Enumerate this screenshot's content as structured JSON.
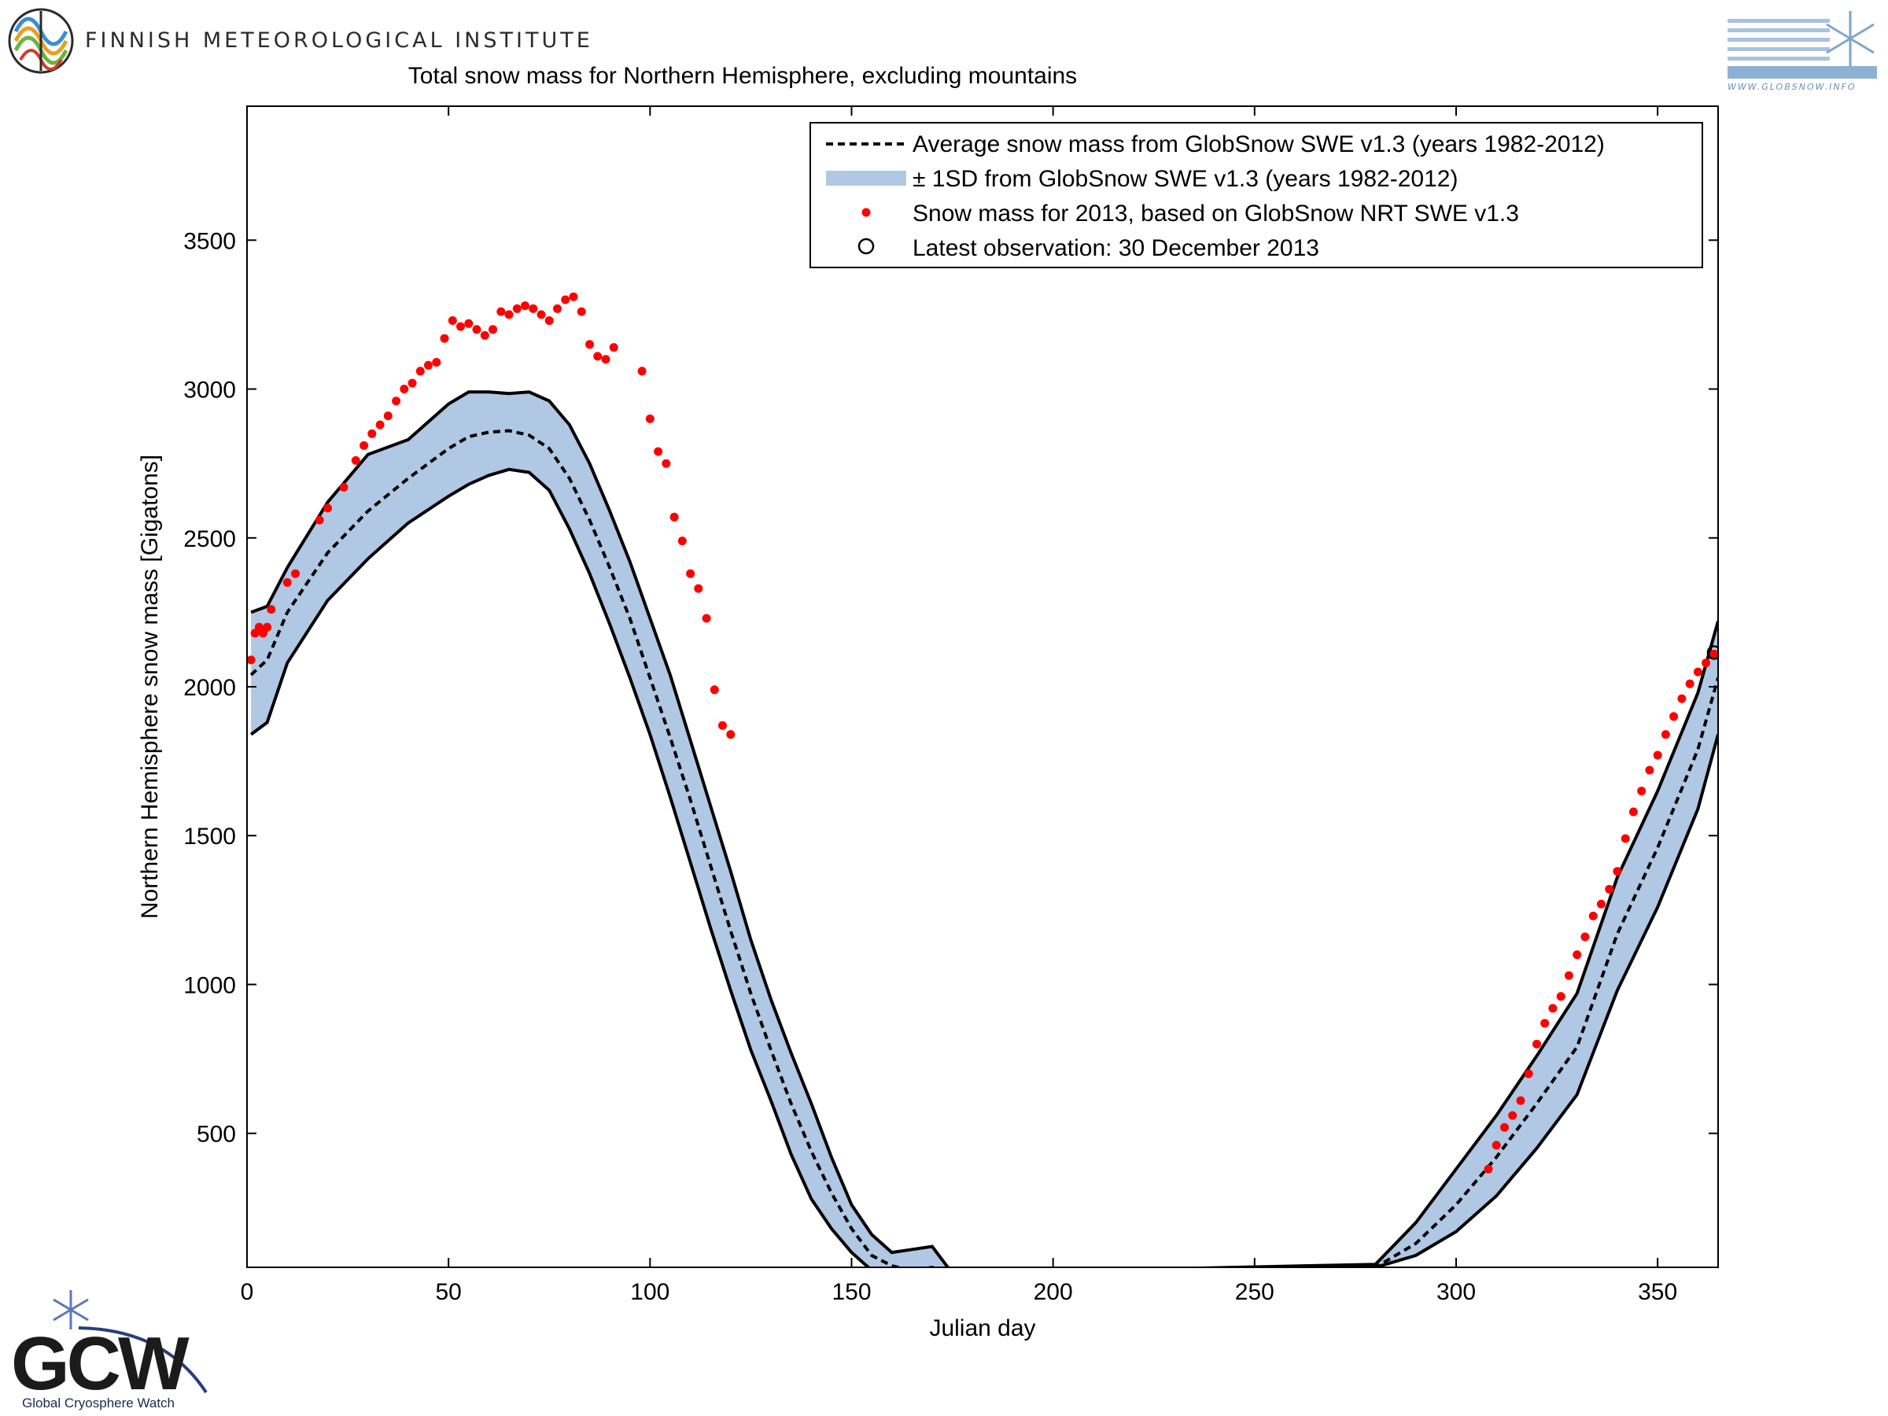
{
  "header": {
    "organization": "FINNISH METEOROLOGICAL INSTITUTE",
    "fmi_logo_icon": "fmi-logo-icon",
    "globsnow_logo_icon": "globsnow-logo-icon",
    "globsnow_url": "WWW.GLOBSNOW.INFO"
  },
  "footer": {
    "gcw_logo_icon": "gcw-logo-icon",
    "gcw_subtitle": "Global Cryosphere Watch"
  },
  "colors": {
    "band": "#b0c8e3",
    "band_border": "#000000",
    "mean_line": "#000000",
    "obs_points": "#ff0000",
    "latest_marker": "#000000"
  },
  "chart_data": {
    "type": "line",
    "title": "Total snow mass for Northern Hemisphere, excluding mountains",
    "xlabel": "Julian day",
    "ylabel": "Northern Hemisphere snow mass [Gigatons]",
    "xlim": [
      0,
      365
    ],
    "ylim": [
      50,
      3950
    ],
    "xticks": [
      0,
      50,
      100,
      150,
      200,
      250,
      300,
      350
    ],
    "yticks": [
      500,
      1000,
      1500,
      2000,
      2500,
      3000,
      3500
    ],
    "grid": false,
    "legend_position": "top-right",
    "legend": [
      "Average snow mass from GlobSnow SWE v1.3 (years 1982-2012)",
      "± 1SD from GlobSnow SWE v1.3 (years 1982-2012)",
      "Snow mass for 2013, based on GlobSnow NRT SWE v1.3",
      "Latest observation: 30 December 2013"
    ],
    "mean_series": {
      "name": "Average snow mass from GlobSnow SWE v1.3 (years 1982-2012)",
      "x": [
        1,
        5,
        10,
        20,
        30,
        40,
        50,
        55,
        60,
        65,
        70,
        75,
        80,
        85,
        90,
        95,
        100,
        105,
        110,
        115,
        120,
        125,
        130,
        135,
        140,
        145,
        150,
        155,
        160,
        165,
        170,
        175,
        280,
        290,
        300,
        310,
        320,
        330,
        340,
        350,
        360,
        365
      ],
      "y": [
        2040,
        2090,
        2250,
        2450,
        2590,
        2700,
        2800,
        2840,
        2855,
        2860,
        2845,
        2800,
        2700,
        2560,
        2400,
        2230,
        2030,
        1830,
        1620,
        1400,
        1180,
        970,
        780,
        600,
        440,
        300,
        180,
        90,
        55,
        40,
        50,
        25,
        50,
        130,
        260,
        420,
        600,
        790,
        1170,
        1460,
        1790,
        2030
      ]
    },
    "band_upper": {
      "x": [
        1,
        5,
        10,
        20,
        30,
        40,
        50,
        55,
        60,
        65,
        70,
        75,
        80,
        85,
        90,
        95,
        100,
        105,
        110,
        115,
        120,
        125,
        130,
        135,
        140,
        145,
        150,
        155,
        160,
        165,
        170,
        175,
        280,
        290,
        300,
        310,
        320,
        330,
        340,
        350,
        360,
        365
      ],
      "y": [
        2250,
        2270,
        2400,
        2620,
        2780,
        2830,
        2950,
        2990,
        2990,
        2985,
        2990,
        2960,
        2880,
        2750,
        2590,
        2420,
        2230,
        2040,
        1820,
        1600,
        1380,
        1150,
        950,
        770,
        600,
        420,
        260,
        160,
        100,
        110,
        120,
        30,
        60,
        200,
        380,
        560,
        760,
        970,
        1360,
        1650,
        1980,
        2220
      ]
    },
    "band_lower": {
      "x": [
        1,
        5,
        10,
        20,
        30,
        40,
        50,
        55,
        60,
        65,
        70,
        75,
        80,
        85,
        90,
        95,
        100,
        105,
        110,
        115,
        120,
        125,
        130,
        135,
        140,
        145,
        150,
        155,
        160,
        165,
        170,
        175,
        280,
        290,
        300,
        310,
        320,
        330,
        340,
        350,
        360,
        365
      ],
      "y": [
        1840,
        1880,
        2080,
        2290,
        2430,
        2550,
        2640,
        2680,
        2710,
        2730,
        2720,
        2660,
        2530,
        2380,
        2210,
        2030,
        1840,
        1630,
        1410,
        1190,
        980,
        780,
        610,
        430,
        280,
        180,
        100,
        40,
        25,
        30,
        40,
        20,
        50,
        90,
        170,
        290,
        450,
        630,
        980,
        1260,
        1590,
        1840
      ]
    },
    "obs_series": {
      "name": "Snow mass for 2013, based on GlobSnow NRT SWE v1.3",
      "x": [
        1,
        2,
        3,
        4,
        5,
        6,
        10,
        12,
        18,
        20,
        24,
        27,
        29,
        31,
        33,
        35,
        37,
        39,
        41,
        43,
        45,
        47,
        49,
        51,
        53,
        55,
        57,
        59,
        61,
        63,
        65,
        67,
        69,
        71,
        73,
        75,
        77,
        79,
        81,
        83,
        85,
        87,
        89,
        91,
        98,
        100,
        102,
        104,
        106,
        108,
        110,
        112,
        114,
        116,
        118,
        120,
        308,
        310,
        312,
        314,
        316,
        318,
        320,
        322,
        324,
        326,
        328,
        330,
        332,
        334,
        336,
        338,
        340,
        342,
        344,
        346,
        348,
        350,
        352,
        354,
        356,
        358,
        360,
        362,
        364
      ],
      "y": [
        2090,
        2180,
        2200,
        2180,
        2200,
        2260,
        2350,
        2380,
        2560,
        2600,
        2670,
        2760,
        2810,
        2850,
        2880,
        2910,
        2960,
        3000,
        3020,
        3060,
        3080,
        3090,
        3170,
        3230,
        3210,
        3220,
        3200,
        3180,
        3200,
        3260,
        3250,
        3270,
        3280,
        3270,
        3250,
        3230,
        3270,
        3300,
        3310,
        3260,
        3150,
        3110,
        3100,
        3140,
        3060,
        2900,
        2790,
        2750,
        2570,
        2490,
        2380,
        2330,
        2230,
        1990,
        1870,
        1840,
        380,
        460,
        520,
        560,
        610,
        700,
        800,
        870,
        920,
        960,
        1030,
        1100,
        1160,
        1230,
        1270,
        1320,
        1380,
        1490,
        1580,
        1650,
        1720,
        1770,
        1840,
        1900,
        1960,
        2010,
        2050,
        2080,
        2110
      ]
    },
    "latest_observation": {
      "x": 364,
      "y": 2115,
      "label": "Latest observation: 30 December 2013"
    }
  }
}
